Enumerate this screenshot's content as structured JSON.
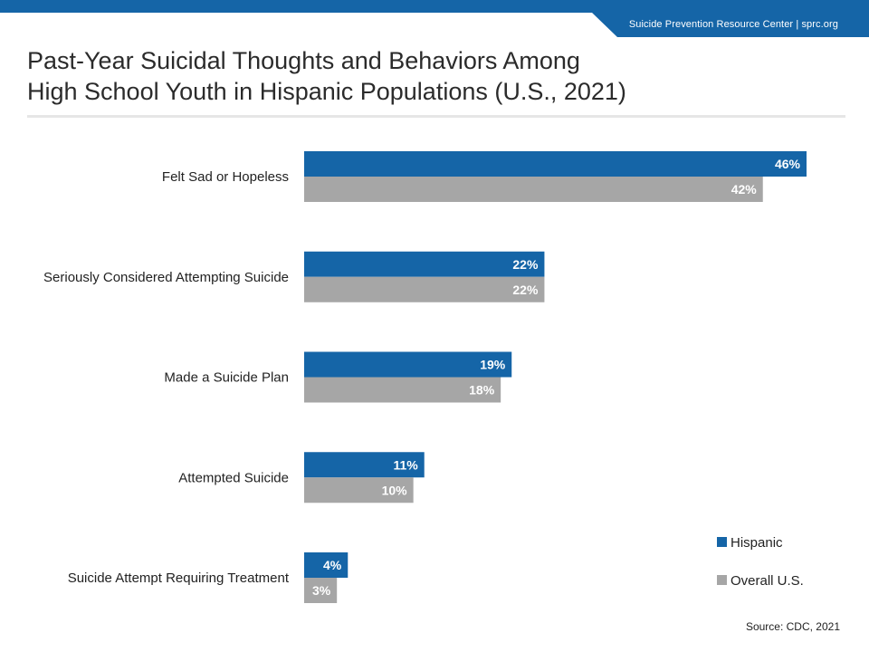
{
  "header": {
    "brand": "Suicide Prevention Resource Center  | sprc.org"
  },
  "title": {
    "line1": "Past-Year Suicidal Thoughts and Behaviors Among",
    "line2": "High School Youth in Hispanic Populations (U.S., 2021)"
  },
  "colors": {
    "hispanic": "#1565a7",
    "overall": "#a6a6a6",
    "brand": "#1565a7"
  },
  "legend": {
    "hispanic": "Hispanic",
    "overall": "Overall U.S."
  },
  "source": "Source: CDC, 2021",
  "chart_data": {
    "type": "bar",
    "orientation": "horizontal",
    "categories": [
      "Felt Sad or Hopeless",
      "Seriously Considered Attempting Suicide",
      "Made a Suicide Plan",
      "Attempted Suicide",
      "Suicide Attempt Requiring Treatment"
    ],
    "series": [
      {
        "name": "Hispanic",
        "values": [
          46,
          22,
          19,
          11,
          4
        ],
        "labels": [
          "46%",
          "22%",
          "19%",
          "11%",
          "4%"
        ]
      },
      {
        "name": "Overall U.S.",
        "values": [
          42,
          22,
          18,
          10,
          3
        ],
        "labels": [
          "42%",
          "22%",
          "18%",
          "10%",
          "3%"
        ]
      }
    ],
    "unit": "%",
    "xlim": [
      0,
      46
    ],
    "grid": false,
    "legend_position": "bottom-right",
    "data_labels": true
  }
}
